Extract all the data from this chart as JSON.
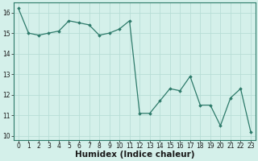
{
  "x": [
    0,
    1,
    2,
    3,
    4,
    5,
    6,
    7,
    8,
    9,
    10,
    11,
    12,
    13,
    14,
    15,
    16,
    17,
    18,
    19,
    20,
    21,
    22,
    23
  ],
  "y": [
    16.2,
    15.0,
    14.9,
    15.0,
    15.1,
    15.6,
    15.5,
    15.4,
    14.9,
    15.0,
    15.2,
    15.6,
    11.1,
    11.1,
    11.7,
    12.3,
    12.2,
    12.9,
    11.5,
    11.5,
    10.5,
    11.85,
    12.3,
    10.2
  ],
  "xlabel": "Humidex (Indice chaleur)",
  "line_color": "#2d7a6a",
  "marker": "D",
  "marker_size": 1.8,
  "bg_color": "#d4f0ea",
  "grid_color": "#b8ddd6",
  "ylim": [
    9.8,
    16.5
  ],
  "xlim": [
    -0.5,
    23.5
  ],
  "yticks": [
    10,
    11,
    12,
    13,
    14,
    15,
    16
  ],
  "xticks": [
    0,
    1,
    2,
    3,
    4,
    5,
    6,
    7,
    8,
    9,
    10,
    11,
    12,
    13,
    14,
    15,
    16,
    17,
    18,
    19,
    20,
    21,
    22,
    23
  ],
  "tick_fontsize": 5.5,
  "xlabel_fontsize": 7.5
}
